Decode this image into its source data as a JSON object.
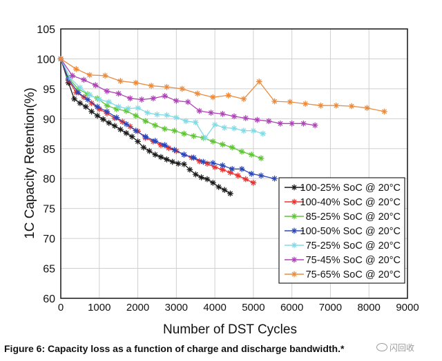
{
  "chart_data": {
    "type": "line",
    "title": "",
    "xlabel": "Number of DST Cycles",
    "ylabel": "1C Capacity Retention(%)",
    "xlim": [
      0,
      9000
    ],
    "ylim": [
      60,
      105
    ],
    "xticks": [
      0,
      1000,
      2000,
      3000,
      4000,
      5000,
      6000,
      7000,
      8000,
      9000
    ],
    "yticks": [
      60,
      65,
      70,
      75,
      80,
      85,
      90,
      95,
      100,
      105
    ],
    "grid": true,
    "legend_position": "lower-right",
    "series": [
      {
        "name": "100-25% SoC @ 20°C",
        "color": "#1a1a1a",
        "x": [
          0,
          200,
          350,
          500,
          650,
          800,
          950,
          1100,
          1250,
          1400,
          1550,
          1700,
          1850,
          2000,
          2150,
          2300,
          2450,
          2600,
          2750,
          2900,
          3050,
          3200,
          3350,
          3500,
          3650,
          3800,
          3950,
          4100,
          4250,
          4400
        ],
        "y": [
          100,
          96,
          93.3,
          92.6,
          92,
          91.2,
          90.5,
          89.9,
          89.3,
          88.8,
          88.2,
          87.6,
          87,
          86.2,
          85.2,
          84.6,
          84,
          83.6,
          83.2,
          82.8,
          82.5,
          82.4,
          81.5,
          80.7,
          80.2,
          79.9,
          79.3,
          78.6,
          78.1,
          77.5
        ]
      },
      {
        "name": "100-40% SoC @ 20°C",
        "color": "#e8312f",
        "x": [
          0,
          200,
          400,
          600,
          800,
          1000,
          1200,
          1400,
          1600,
          1800,
          2000,
          2200,
          2400,
          2600,
          2800,
          3000,
          3200,
          3400,
          3600,
          3800,
          4000,
          4200,
          4400,
          4600,
          4800,
          5000
        ],
        "y": [
          100,
          96.4,
          94.4,
          93.6,
          92.6,
          91.6,
          90.9,
          90.1,
          89.5,
          88.7,
          87.9,
          86.8,
          86.2,
          85.6,
          85.1,
          84.6,
          84,
          83.5,
          82.9,
          82.5,
          81.9,
          81.5,
          81,
          80.5,
          79.9,
          79.3
        ]
      },
      {
        "name": "85-25% SoC @ 20°C",
        "color": "#5fc435",
        "x": [
          0,
          200,
          450,
          700,
          950,
          1200,
          1450,
          1700,
          1950,
          2200,
          2450,
          2700,
          2950,
          3200,
          3450,
          3700,
          3950,
          4200,
          4450,
          4700,
          4950,
          5200
        ],
        "y": [
          100,
          96.8,
          95,
          94.1,
          93.4,
          92.2,
          91.6,
          91.3,
          90.5,
          89.6,
          88.9,
          88.3,
          88,
          87.5,
          87.1,
          86.8,
          86.2,
          85.7,
          85.2,
          84.5,
          84,
          83.4
        ]
      },
      {
        "name": "100-50% SoC @ 20°C",
        "color": "#2b46b4",
        "x": [
          0,
          200,
          450,
          700,
          950,
          1200,
          1450,
          1700,
          1950,
          2200,
          2450,
          2700,
          2950,
          3200,
          3450,
          3700,
          3950,
          4200,
          4450,
          4700,
          4950,
          5200,
          5550
        ],
        "y": [
          100,
          96.6,
          94.4,
          93.2,
          92,
          91.2,
          90.2,
          89.1,
          88,
          87,
          86.3,
          85.6,
          84.8,
          84,
          83.5,
          82.8,
          82.6,
          82.2,
          81.6,
          81.6,
          80.8,
          80.5,
          80
        ]
      },
      {
        "name": "75-25% SoC @ 20°C",
        "color": "#7fdbe6",
        "x": [
          0,
          250,
          500,
          750,
          1000,
          1250,
          1500,
          1750,
          2000,
          2250,
          2500,
          2750,
          3000,
          3250,
          3500,
          3750,
          4000,
          4250,
          4500,
          4750,
          5000,
          5250
        ],
        "y": [
          100,
          96.8,
          95.2,
          94,
          93.2,
          92.8,
          92,
          91.7,
          91.8,
          91,
          90.7,
          90.6,
          90.2,
          89.6,
          89.4,
          86.8,
          89,
          88.5,
          88.4,
          88,
          88,
          87.5
        ]
      },
      {
        "name": "75-45% SoC @ 20°C",
        "color": "#b040b8",
        "x": [
          0,
          300,
          600,
          900,
          1200,
          1500,
          1800,
          2100,
          2400,
          2700,
          3000,
          3300,
          3600,
          3900,
          4200,
          4500,
          4800,
          5100,
          5400,
          5700,
          6000,
          6300,
          6600
        ],
        "y": [
          100,
          97.2,
          96.5,
          95.6,
          94.6,
          94.2,
          93.4,
          93.2,
          93.4,
          93.8,
          93,
          92.8,
          91.3,
          91,
          90.8,
          90.4,
          90.1,
          89.8,
          89.6,
          89.2,
          89.2,
          89.2,
          88.9
        ]
      },
      {
        "name": "75-65% SoC @ 20°C",
        "color": "#ec8a3a",
        "x": [
          0,
          400,
          750,
          1150,
          1550,
          1950,
          2350,
          2750,
          3150,
          3550,
          3950,
          4350,
          4750,
          5150,
          5550,
          5950,
          6350,
          6750,
          7150,
          7550,
          7950,
          8400
        ],
        "y": [
          100,
          98.3,
          97.3,
          97.2,
          96.3,
          96,
          95.5,
          95.3,
          95,
          94.2,
          93.6,
          93.9,
          93.3,
          96.2,
          92.9,
          92.8,
          92.5,
          92.2,
          92.2,
          92.1,
          91.8,
          91.2
        ]
      }
    ]
  },
  "caption": "Figure 6: Capacity loss as a function of charge and discharge bandwidth.*",
  "watermark": "闪回收"
}
